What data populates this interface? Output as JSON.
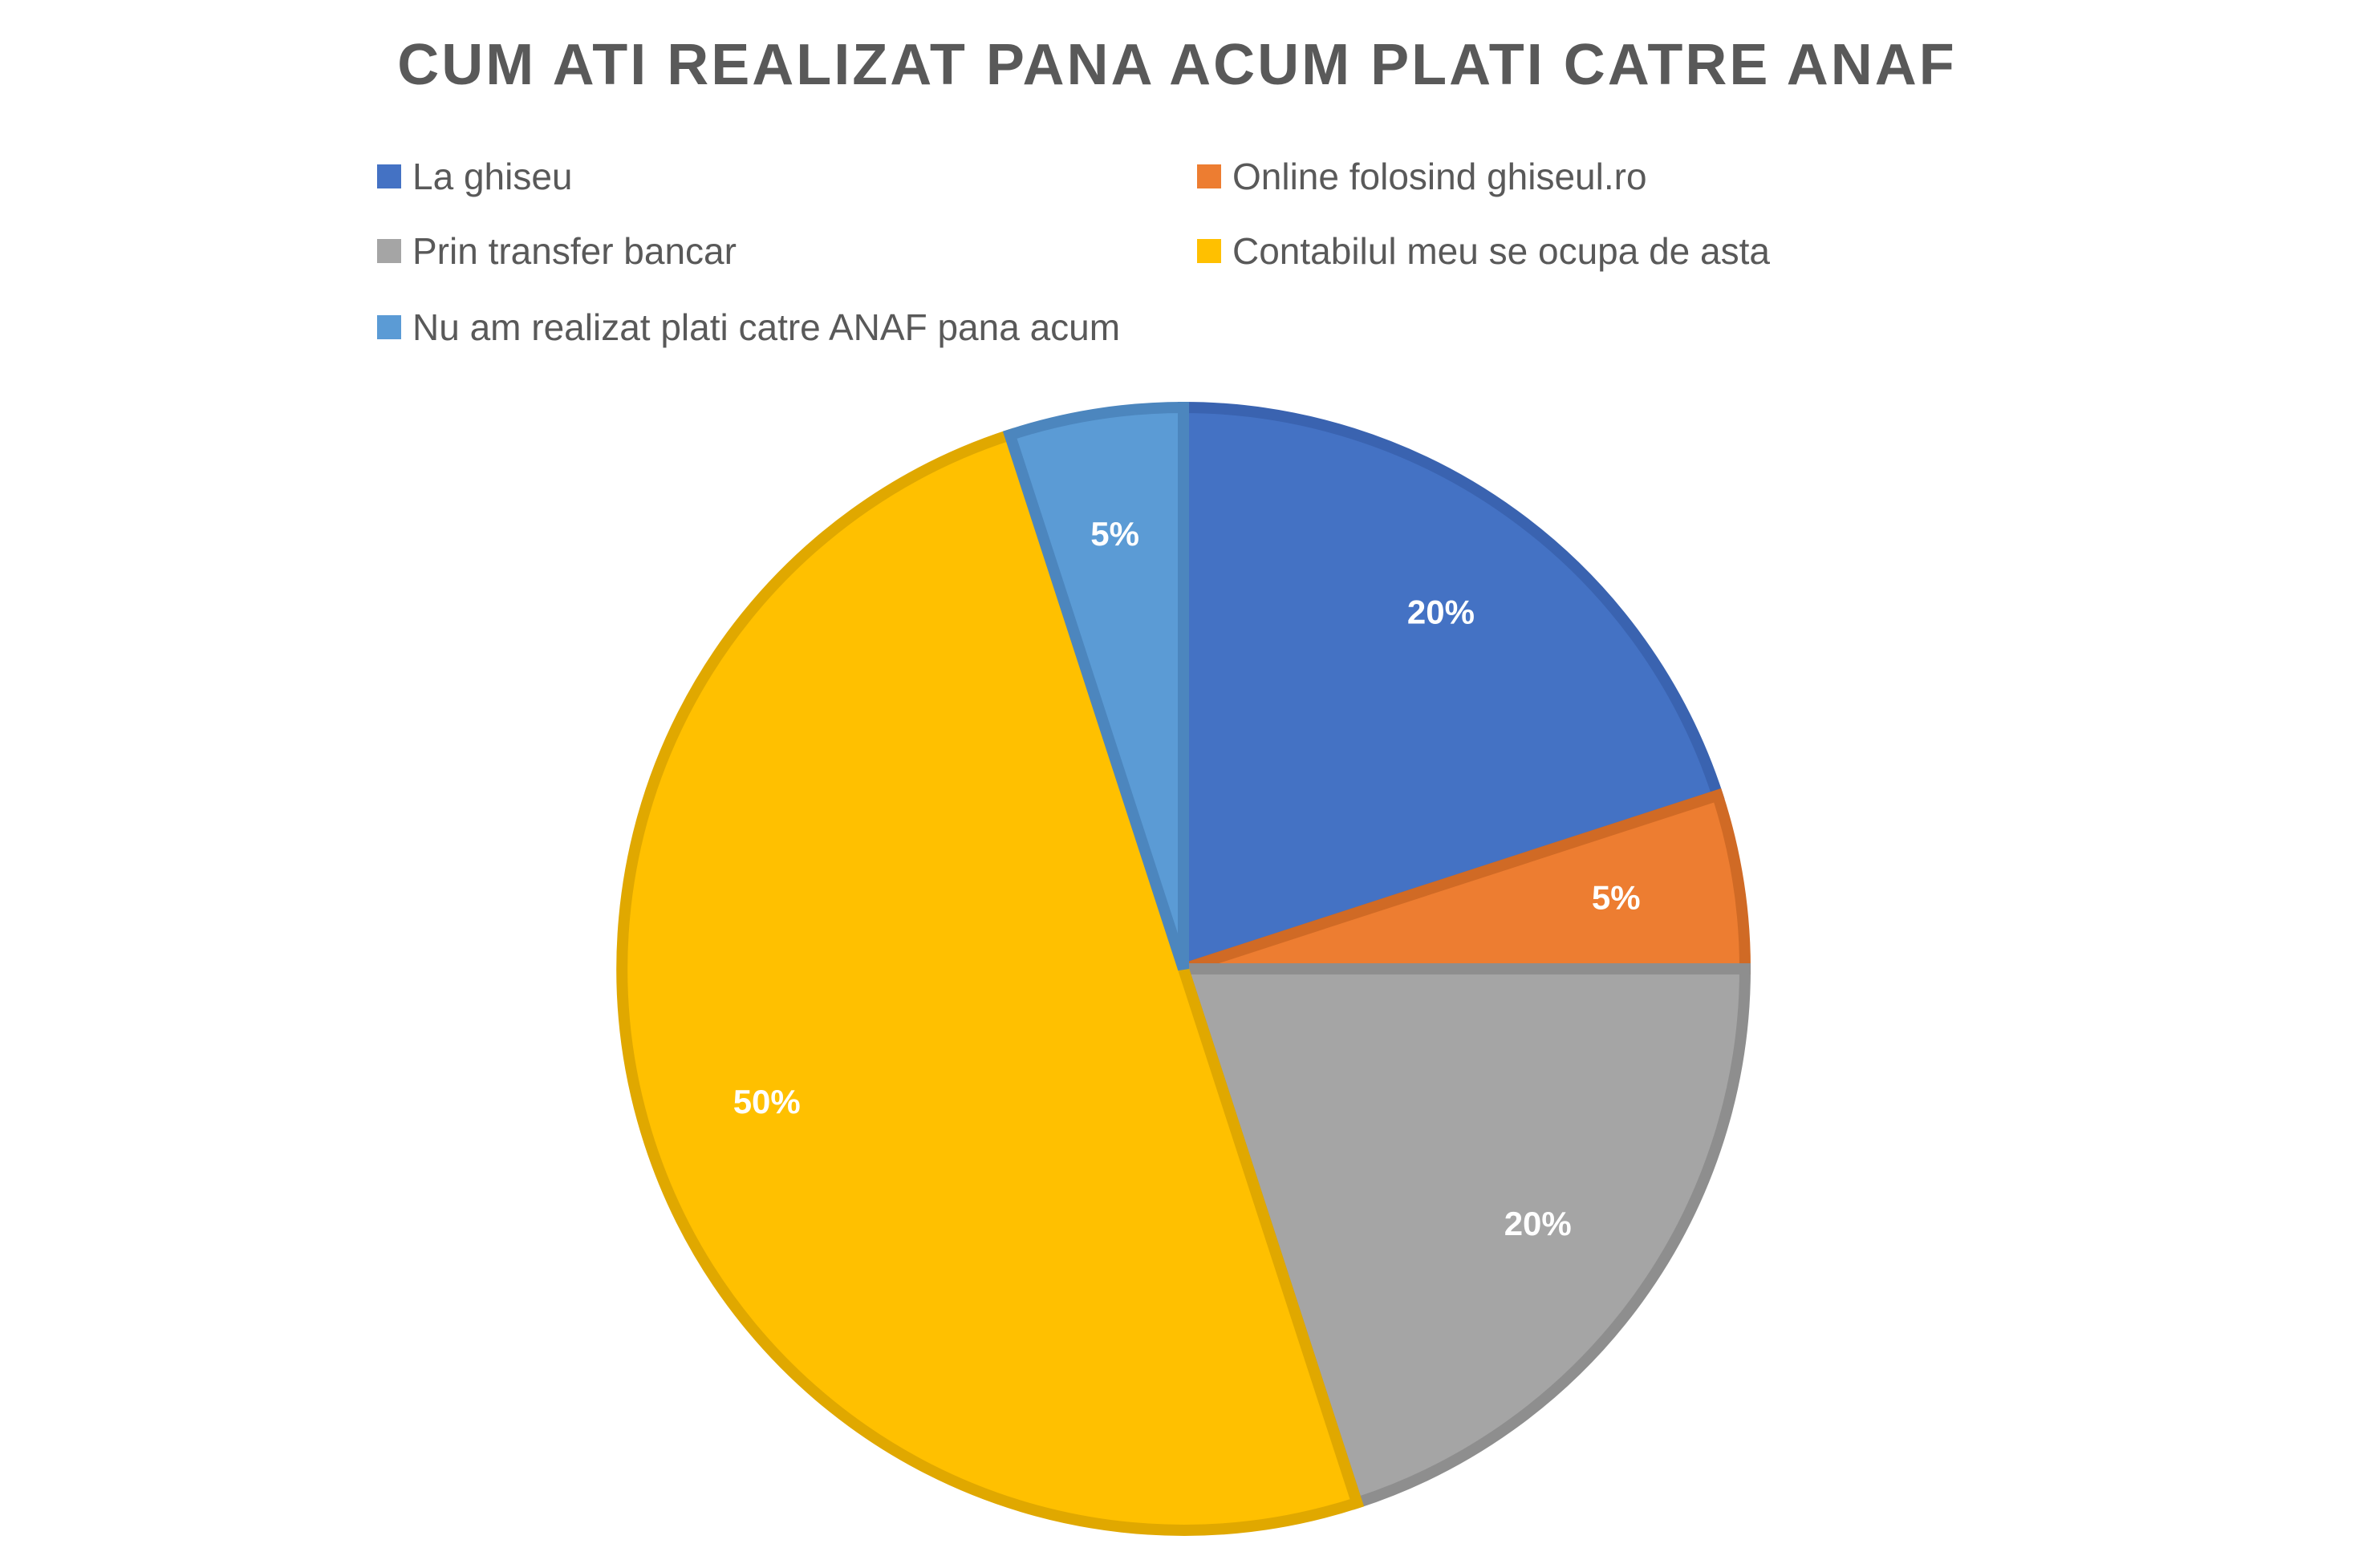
{
  "chart_data": {
    "type": "pie",
    "title": "CUM ATI REALIZAT PANA ACUM PLATI CATRE ANAF",
    "categories": [
      "La ghiseu",
      "Online folosind ghiseul.ro",
      "Prin transfer bancar",
      "Contabilul meu se ocupa de asta",
      "Nu am realizat plati catre ANAF pana acum"
    ],
    "values": [
      20,
      5,
      20,
      50,
      5
    ],
    "value_labels": [
      "20%",
      "5%",
      "20%",
      "50%",
      "5%"
    ],
    "colors": [
      "#4472C4",
      "#ED7D31",
      "#A5A5A5",
      "#FFC000",
      "#5B9BD5"
    ],
    "border_colors": [
      "#3A63B0",
      "#D06A25",
      "#8E8E8E",
      "#E0A800",
      "#4C86BE"
    ],
    "legend_position": "top"
  }
}
